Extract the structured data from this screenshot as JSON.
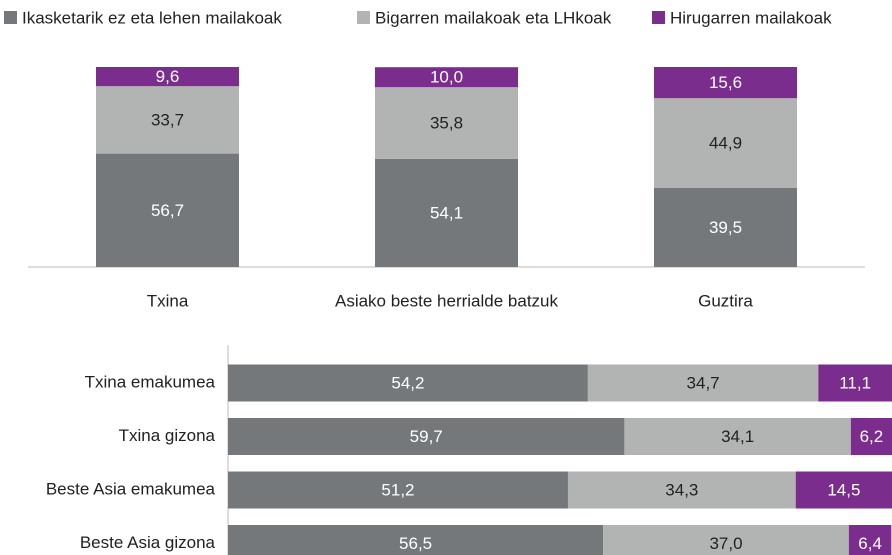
{
  "chart_data": [
    {
      "type": "stacked-bar",
      "categories": [
        "Txina",
        "Asiako beste herrialde batzuk",
        "Guztira"
      ],
      "ylim": [
        0,
        100
      ],
      "series": [
        {
          "name": "Ikasketarik ez eta lehen  mailakoak",
          "color": "#75787b",
          "values": [
            56.7,
            54.1,
            39.5
          ],
          "value_labels": [
            "56,7",
            "54,1",
            "39,5"
          ]
        },
        {
          "name": "Bigarren mailakoak eta LHkoak",
          "color": "#b2b4b4",
          "values": [
            33.7,
            35.8,
            44.9
          ],
          "value_labels": [
            "33,7",
            "35,8",
            "44,9"
          ]
        },
        {
          "name": "Hirugarren mailakoak",
          "color": "#7b2d8e",
          "values": [
            9.6,
            10.0,
            15.6
          ],
          "value_labels": [
            "9,6",
            "10,0",
            "15,6"
          ]
        }
      ]
    },
    {
      "type": "stacked-barh",
      "categories": [
        "Txina emakumea",
        "Txina gizona",
        "Beste Asia emakumea",
        "Beste Asia gizona"
      ],
      "xlim": [
        0,
        100
      ],
      "series": [
        {
          "color": "#75787b",
          "values": [
            54.2,
            59.7,
            51.2,
            56.5
          ],
          "value_labels": [
            "54,2",
            "59,7",
            "51,2",
            "56,5"
          ]
        },
        {
          "color": "#b2b4b4",
          "values": [
            34.7,
            34.1,
            34.3,
            37.0
          ],
          "value_labels": [
            "34,7",
            "34,1",
            "34,3",
            "37,0"
          ]
        },
        {
          "color": "#7b2d8e",
          "values": [
            11.1,
            6.2,
            14.5,
            6.4
          ],
          "value_labels": [
            "11,1",
            "6,2",
            "14,5",
            "6,4"
          ]
        }
      ]
    }
  ]
}
